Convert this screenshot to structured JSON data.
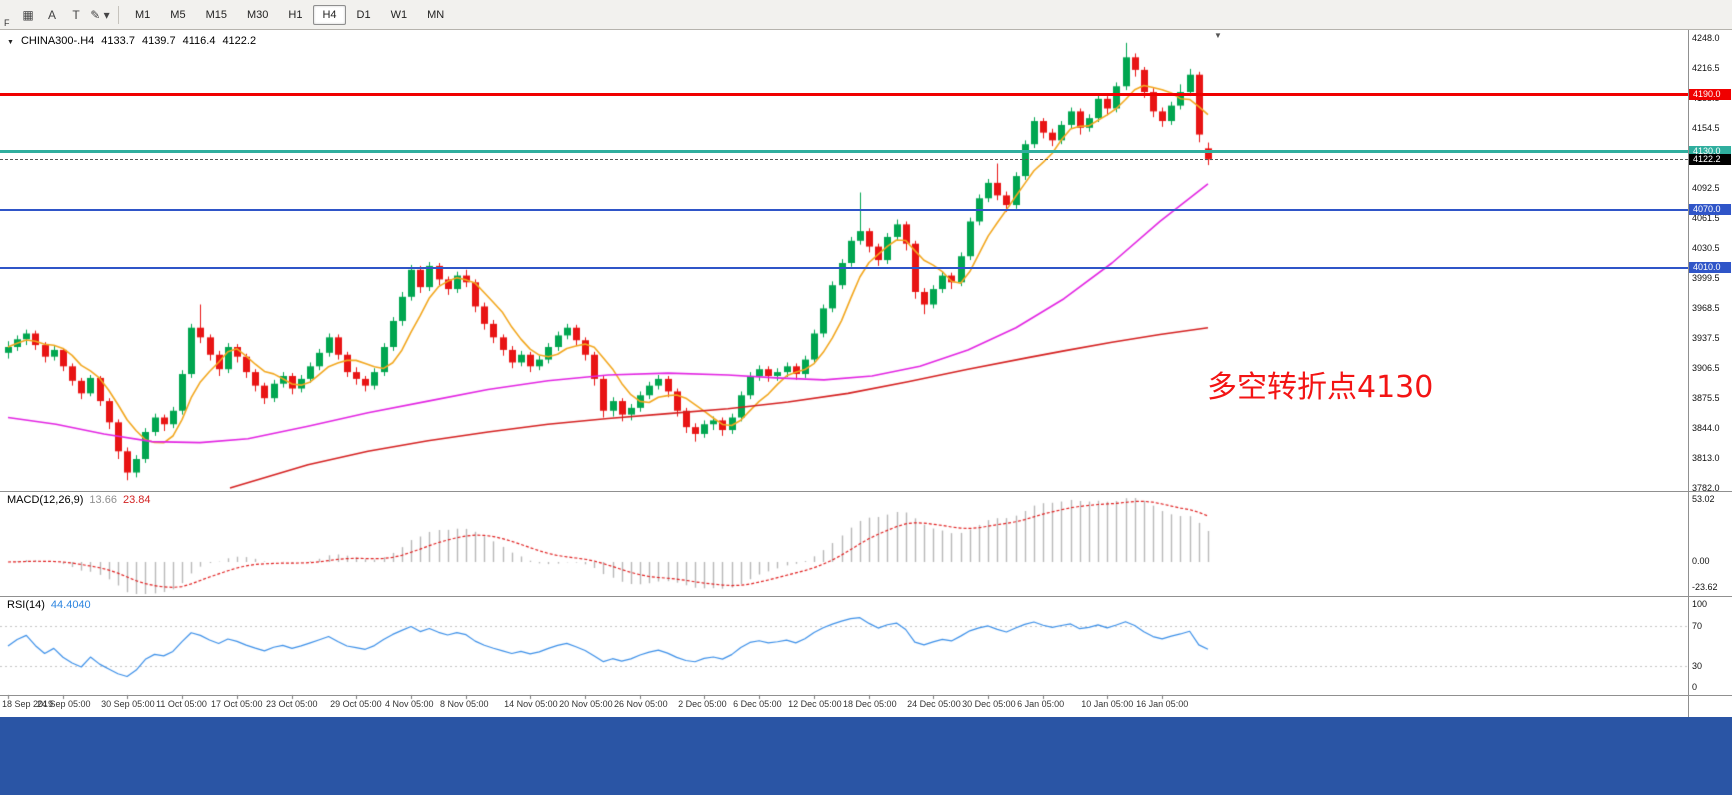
{
  "icons": {
    "caret": "▼"
  },
  "toolbar": {
    "tools": [
      {
        "name": "chart-grid",
        "glyph": "▦"
      },
      {
        "name": "cursor-tool",
        "glyph": "A"
      },
      {
        "name": "text-tool",
        "glyph": "T"
      },
      {
        "name": "draw-tool",
        "glyph": "✎ ▾"
      }
    ],
    "f_label": "F",
    "timeframes": [
      "M1",
      "M5",
      "M15",
      "M30",
      "H1",
      "H4",
      "D1",
      "W1",
      "MN"
    ],
    "active_timeframe": "H4"
  },
  "chart": {
    "symbol": "CHINA300-.H4",
    "ohlc": {
      "open": "4133.7",
      "high": "4139.7",
      "low": "4116.4",
      "close": "4122.2"
    },
    "annotation": "多空转折点4130",
    "price_axis_labels": [
      "4248.0",
      "4216.5",
      "4185.5",
      "4154.5",
      "4123.5",
      "4092.5",
      "4061.5",
      "4030.5",
      "3999.5",
      "3968.5",
      "3937.5",
      "3906.5",
      "3875.5",
      "3844.0",
      "3813.0",
      "3782.0"
    ],
    "hlines": [
      {
        "label": "4190.0",
        "price": 4190.0,
        "color": "#f00000",
        "thickness": 3
      },
      {
        "label": "4130.0",
        "price": 4130.0,
        "color": "#2fae9e",
        "thickness": 3
      },
      {
        "label": "4070.0",
        "price": 4070.0,
        "color": "#2f55c8",
        "thickness": 2
      },
      {
        "label": "4010.0",
        "price": 4010.0,
        "color": "#2f55c8",
        "thickness": 2
      }
    ],
    "current_price": {
      "label": "4122.2",
      "price": 4122.2
    },
    "candles": [
      [
        3922,
        3934,
        3916,
        3928
      ],
      [
        3928,
        3940,
        3924,
        3936
      ],
      [
        3936,
        3946,
        3930,
        3942
      ],
      [
        3942,
        3945,
        3925,
        3930
      ],
      [
        3930,
        3933,
        3912,
        3918
      ],
      [
        3918,
        3929,
        3914,
        3925
      ],
      [
        3925,
        3927,
        3903,
        3908
      ],
      [
        3908,
        3911,
        3888,
        3893
      ],
      [
        3893,
        3896,
        3874,
        3880
      ],
      [
        3880,
        3899,
        3877,
        3896
      ],
      [
        3896,
        3898,
        3867,
        3872
      ],
      [
        3872,
        3875,
        3843,
        3850
      ],
      [
        3850,
        3853,
        3812,
        3820
      ],
      [
        3820,
        3824,
        3790,
        3798
      ],
      [
        3798,
        3816,
        3793,
        3812
      ],
      [
        3812,
        3844,
        3808,
        3840
      ],
      [
        3840,
        3859,
        3836,
        3855
      ],
      [
        3855,
        3858,
        3841,
        3848
      ],
      [
        3848,
        3866,
        3844,
        3862
      ],
      [
        3862,
        3904,
        3858,
        3900
      ],
      [
        3900,
        3952,
        3896,
        3948
      ],
      [
        3948,
        3972,
        3932,
        3938
      ],
      [
        3938,
        3941,
        3914,
        3920
      ],
      [
        3920,
        3924,
        3898,
        3905
      ],
      [
        3905,
        3932,
        3901,
        3928
      ],
      [
        3928,
        3931,
        3912,
        3918
      ],
      [
        3918,
        3921,
        3896,
        3902
      ],
      [
        3902,
        3905,
        3882,
        3888
      ],
      [
        3888,
        3891,
        3869,
        3875
      ],
      [
        3875,
        3894,
        3871,
        3890
      ],
      [
        3890,
        3902,
        3886,
        3898
      ],
      [
        3898,
        3901,
        3879,
        3885
      ],
      [
        3885,
        3899,
        3881,
        3895
      ],
      [
        3895,
        3912,
        3891,
        3908
      ],
      [
        3908,
        3926,
        3904,
        3922
      ],
      [
        3922,
        3942,
        3918,
        3938
      ],
      [
        3938,
        3941,
        3915,
        3920
      ],
      [
        3920,
        3923,
        3897,
        3902
      ],
      [
        3902,
        3907,
        3889,
        3895
      ],
      [
        3895,
        3898,
        3882,
        3888
      ],
      [
        3888,
        3906,
        3884,
        3902
      ],
      [
        3902,
        3932,
        3898,
        3928
      ],
      [
        3928,
        3959,
        3924,
        3955
      ],
      [
        3955,
        3985,
        3950,
        3980
      ],
      [
        3980,
        4013,
        3976,
        4008
      ],
      [
        4008,
        4012,
        3984,
        3990
      ],
      [
        3990,
        4016,
        3986,
        4012
      ],
      [
        4012,
        4015,
        3992,
        3998
      ],
      [
        3998,
        4001,
        3982,
        3988
      ],
      [
        3988,
        4006,
        3984,
        4002
      ],
      [
        4002,
        4008,
        3990,
        3995
      ],
      [
        3995,
        3998,
        3964,
        3970
      ],
      [
        3970,
        3974,
        3946,
        3952
      ],
      [
        3952,
        3956,
        3932,
        3938
      ],
      [
        3938,
        3941,
        3919,
        3925
      ],
      [
        3925,
        3929,
        3906,
        3912
      ],
      [
        3912,
        3924,
        3908,
        3920
      ],
      [
        3920,
        3923,
        3902,
        3908
      ],
      [
        3908,
        3919,
        3904,
        3915
      ],
      [
        3915,
        3932,
        3911,
        3928
      ],
      [
        3928,
        3944,
        3924,
        3940
      ],
      [
        3940,
        3952,
        3936,
        3948
      ],
      [
        3948,
        3951,
        3929,
        3935
      ],
      [
        3935,
        3938,
        3914,
        3920
      ],
      [
        3920,
        3923,
        3888,
        3895
      ],
      [
        3895,
        3898,
        3855,
        3862
      ],
      [
        3862,
        3876,
        3856,
        3872
      ],
      [
        3872,
        3875,
        3851,
        3858
      ],
      [
        3858,
        3869,
        3852,
        3865
      ],
      [
        3865,
        3882,
        3861,
        3878
      ],
      [
        3878,
        3892,
        3874,
        3888
      ],
      [
        3888,
        3899,
        3884,
        3895
      ],
      [
        3895,
        3898,
        3876,
        3882
      ],
      [
        3882,
        3885,
        3856,
        3862
      ],
      [
        3862,
        3865,
        3839,
        3845
      ],
      [
        3845,
        3849,
        3830,
        3838
      ],
      [
        3838,
        3852,
        3834,
        3848
      ],
      [
        3848,
        3856,
        3842,
        3852
      ],
      [
        3852,
        3855,
        3836,
        3842
      ],
      [
        3842,
        3859,
        3838,
        3855
      ],
      [
        3855,
        3882,
        3851,
        3878
      ],
      [
        3878,
        3902,
        3874,
        3898
      ],
      [
        3898,
        3909,
        3893,
        3905
      ],
      [
        3905,
        3908,
        3892,
        3898
      ],
      [
        3898,
        3906,
        3893,
        3902
      ],
      [
        3902,
        3912,
        3897,
        3908
      ],
      [
        3908,
        3911,
        3894,
        3900
      ],
      [
        3900,
        3919,
        3896,
        3915
      ],
      [
        3915,
        3946,
        3911,
        3942
      ],
      [
        3942,
        3972,
        3938,
        3968
      ],
      [
        3968,
        3996,
        3964,
        3992
      ],
      [
        3992,
        4019,
        3988,
        4015
      ],
      [
        4015,
        4042,
        4011,
        4038
      ],
      [
        4038,
        4088,
        4034,
        4048
      ],
      [
        4048,
        4051,
        4026,
        4032
      ],
      [
        4032,
        4035,
        4012,
        4018
      ],
      [
        4018,
        4046,
        4014,
        4042
      ],
      [
        4042,
        4060,
        4038,
        4055
      ],
      [
        4055,
        4058,
        4028,
        4035
      ],
      [
        4035,
        4038,
        3978,
        3985
      ],
      [
        3985,
        3989,
        3962,
        3972
      ],
      [
        3972,
        3992,
        3968,
        3988
      ],
      [
        3988,
        4006,
        3984,
        4002
      ],
      [
        4002,
        4005,
        3988,
        3995
      ],
      [
        3995,
        4026,
        3991,
        4022
      ],
      [
        4022,
        4062,
        4018,
        4058
      ],
      [
        4058,
        4086,
        4054,
        4082
      ],
      [
        4082,
        4102,
        4078,
        4098
      ],
      [
        4098,
        4118,
        4080,
        4085
      ],
      [
        4085,
        4089,
        4068,
        4075
      ],
      [
        4075,
        4109,
        4071,
        4105
      ],
      [
        4105,
        4142,
        4101,
        4138
      ],
      [
        4138,
        4166,
        4134,
        4162
      ],
      [
        4162,
        4165,
        4144,
        4150
      ],
      [
        4150,
        4154,
        4136,
        4142
      ],
      [
        4142,
        4162,
        4138,
        4158
      ],
      [
        4158,
        4176,
        4154,
        4172
      ],
      [
        4172,
        4175,
        4148,
        4155
      ],
      [
        4155,
        4169,
        4151,
        4165
      ],
      [
        4165,
        4189,
        4161,
        4185
      ],
      [
        4185,
        4188,
        4168,
        4175
      ],
      [
        4175,
        4202,
        4171,
        4198
      ],
      [
        4198,
        4243,
        4194,
        4228
      ],
      [
        4228,
        4232,
        4208,
        4215
      ],
      [
        4215,
        4218,
        4186,
        4192
      ],
      [
        4192,
        4196,
        4166,
        4172
      ],
      [
        4172,
        4176,
        4156,
        4162
      ],
      [
        4162,
        4182,
        4158,
        4178
      ],
      [
        4178,
        4200,
        4174,
        4192
      ],
      [
        4192,
        4216,
        4188,
        4210
      ],
      [
        4210,
        4213,
        4140,
        4148
      ],
      [
        4133.7,
        4139.7,
        4116.4,
        4122.2
      ]
    ],
    "ma_fast_period": 6,
    "ma_mid_points": [
      [
        0,
        3855
      ],
      [
        0.04,
        3848
      ],
      [
        0.08,
        3838
      ],
      [
        0.12,
        3830
      ],
      [
        0.16,
        3829
      ],
      [
        0.2,
        3833
      ],
      [
        0.25,
        3846
      ],
      [
        0.3,
        3860
      ],
      [
        0.35,
        3872
      ],
      [
        0.4,
        3884
      ],
      [
        0.45,
        3893
      ],
      [
        0.5,
        3899
      ],
      [
        0.55,
        3901
      ],
      [
        0.6,
        3899
      ],
      [
        0.64,
        3896
      ],
      [
        0.68,
        3894
      ],
      [
        0.72,
        3898
      ],
      [
        0.76,
        3908
      ],
      [
        0.8,
        3925
      ],
      [
        0.84,
        3948
      ],
      [
        0.88,
        3978
      ],
      [
        0.92,
        4015
      ],
      [
        0.96,
        4058
      ],
      [
        1,
        4097
      ]
    ],
    "ma_slow_points": [
      [
        0.185,
        3782
      ],
      [
        0.25,
        3806
      ],
      [
        0.3,
        3820
      ],
      [
        0.35,
        3831
      ],
      [
        0.4,
        3840
      ],
      [
        0.45,
        3848
      ],
      [
        0.5,
        3854
      ],
      [
        0.55,
        3859
      ],
      [
        0.6,
        3864
      ],
      [
        0.65,
        3871
      ],
      [
        0.7,
        3880
      ],
      [
        0.75,
        3892
      ],
      [
        0.8,
        3905
      ],
      [
        0.85,
        3917
      ],
      [
        0.88,
        3924
      ],
      [
        0.92,
        3933
      ],
      [
        0.96,
        3941
      ],
      [
        1,
        3948
      ]
    ]
  },
  "macd": {
    "name": "MACD(12,26,9)",
    "value": "13.66",
    "signal_value": "23.84",
    "axis_labels": [
      "53.02",
      "0.00",
      "-23.62"
    ]
  },
  "rsi": {
    "name": "RSI(14)",
    "value": "44.4040",
    "axis_labels": [
      "100",
      "70",
      "30",
      "0"
    ],
    "levels": [
      70,
      30
    ]
  },
  "time_axis": {
    "labels": [
      "18 Sep 2019",
      "24 Sep 05:00",
      "30 Sep 05:00",
      "11 Oct 05:00",
      "17 Oct 05:00",
      "23 Oct 05:00",
      "29 Oct 05:00",
      "4 Nov 05:00",
      "8 Nov 05:00",
      "14 Nov 05:00",
      "20 Nov 05:00",
      "26 Nov 05:00",
      "2 Dec 05:00",
      "6 Dec 05:00",
      "12 Dec 05:00",
      "18 Dec 05:00",
      "24 Dec 05:00",
      "30 Dec 05:00",
      "6 Jan 05:00",
      "10 Jan 05:00",
      "16 Jan 05:00"
    ]
  },
  "colors": {
    "candle_up": "#00a650",
    "candle_down": "#e81414",
    "ma_fast": "#f2a71f",
    "ma_mid": "#e224e2",
    "ma_slow": "#d42020",
    "macd_hist": "#b8b8b8",
    "macd_signal": "#e02020",
    "rsi_line": "#3b8fe8",
    "rsi_levels": "#c4c4c4",
    "current_tag_bg": "#000000",
    "annotation": "#f31414",
    "bottom_bar": "#2a55a5"
  }
}
